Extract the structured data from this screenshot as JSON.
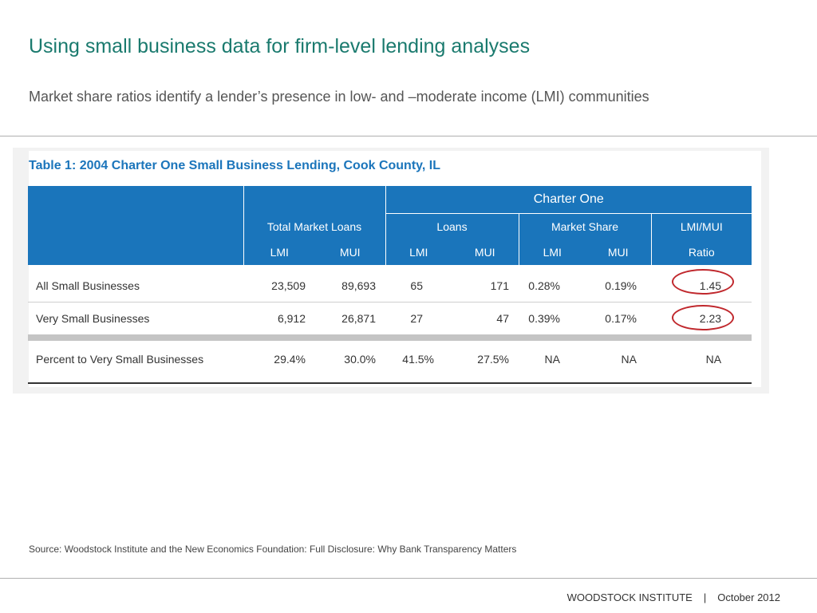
{
  "slide": {
    "title": "Using small business data for firm-level lending analyses",
    "subtitle": "Market share ratios identify a lender’s presence in low- and –moderate income (LMI) communities"
  },
  "table": {
    "caption": "Table 1: 2004 Charter One Small Business Lending, Cook County, IL",
    "header": {
      "group": "Charter One",
      "total_market_loans": "Total Market Loans",
      "loans": "Loans",
      "market_share": "Market Share",
      "lmi_mui": "LMI/MUI",
      "lmi": "LMI",
      "mui": "MUI",
      "ratio": "Ratio"
    },
    "rows": [
      {
        "label": "All Small Businesses",
        "tm_lmi": "23,509",
        "tm_mui": "89,693",
        "loans_lmi": "65",
        "loans_mui": "171",
        "share_lmi": "0.28%",
        "share_mui": "0.19%",
        "ratio": "1.45"
      },
      {
        "label": "Very Small Businesses",
        "tm_lmi": "6,912",
        "tm_mui": "26,871",
        "loans_lmi": "27",
        "loans_mui": "47",
        "share_lmi": "0.39%",
        "share_mui": "0.17%",
        "ratio": "2.23"
      },
      {
        "label": "Percent to Very Small Businesses",
        "tm_lmi": "29.4%",
        "tm_mui": "30.0%",
        "loans_lmi": "41.5%",
        "loans_mui": "27.5%",
        "share_lmi": "NA",
        "share_mui": "NA",
        "ratio": "NA"
      }
    ]
  },
  "source": "Source: Woodstock Institute and the New Economics Foundation:  Full Disclosure: Why Bank Transparency Matters",
  "footer": {
    "org": "WOODSTOCK INSTITUTE",
    "separator": "|",
    "date": "October 2012"
  },
  "colors": {
    "title": "#1a7a6e",
    "table_header": "#1a75bb",
    "highlight_circle": "#c0282d"
  }
}
